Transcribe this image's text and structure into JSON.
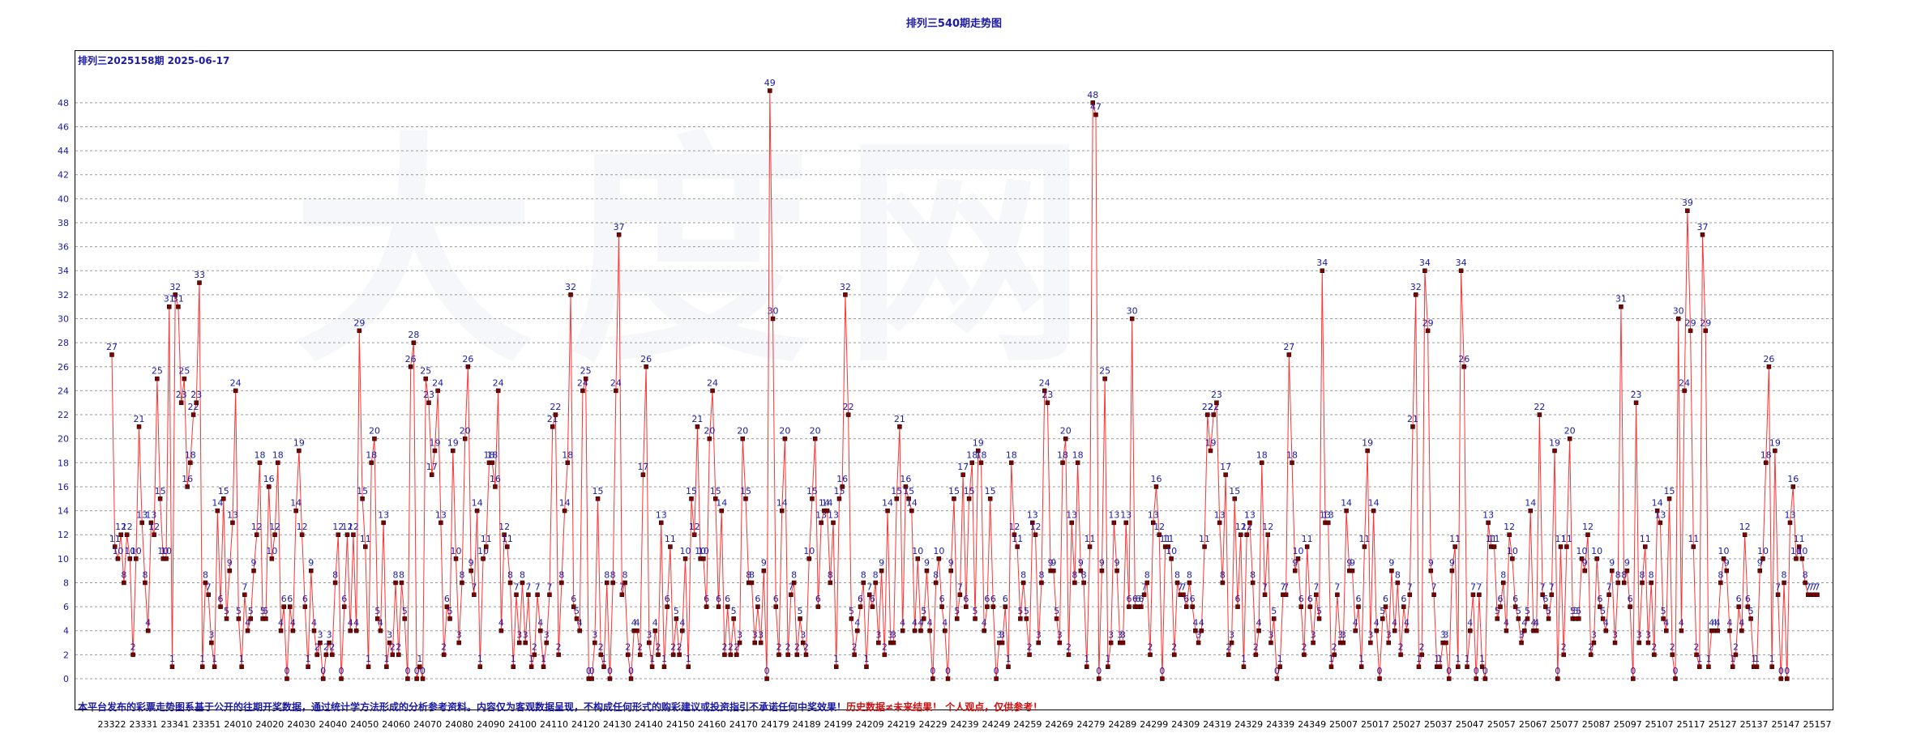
{
  "chart_data": {
    "type": "line",
    "title": "排列三540期走势图",
    "subtitle": "排列三2025158期  2025-06-17",
    "watermark": "大 度 网",
    "disclaimer_blue": "本平台发布的彩票走势图系基于公开的往期开奖数据，通过统计学方法形成的分析参考资料。内容仅为客观数据呈现，不构成任何形式的购彩建议或投资指引不承诺任何中奖效果！",
    "disclaimer_red": "历史数据≠未来结果！ 个人观点，仅供参考！",
    "ylim": [
      0,
      49
    ],
    "yticks": [
      0,
      2,
      4,
      6,
      8,
      10,
      12,
      14,
      16,
      18,
      20,
      22,
      24,
      26,
      28,
      30,
      32,
      34,
      36,
      38,
      40,
      42,
      44,
      46,
      48
    ],
    "xtick_labels": [
      "23322",
      "23331",
      "23341",
      "23351",
      "24010",
      "24020",
      "24030",
      "24040",
      "24050",
      "24060",
      "24070",
      "24080",
      "24090",
      "24100",
      "24110",
      "24120",
      "24130",
      "24140",
      "24150",
      "24160",
      "24170",
      "24179",
      "24189",
      "24199",
      "24209",
      "24219",
      "24229",
      "24239",
      "24249",
      "24259",
      "24269",
      "24279",
      "24289",
      "24299",
      "24309",
      "24319",
      "24329",
      "24339",
      "24349",
      "25007",
      "25017",
      "25027",
      "25037",
      "25047",
      "25057",
      "25067",
      "25077",
      "25087",
      "25097",
      "25107",
      "25117",
      "25127",
      "25137",
      "25147",
      "25157"
    ],
    "grid": true,
    "line_color": "#ff3333",
    "marker_color": "#800000",
    "label_color": "#1a1aa6",
    "series": [
      {
        "values": [
          27,
          11,
          10,
          12,
          8,
          12,
          10,
          2,
          10,
          21,
          13,
          8,
          4,
          13,
          12,
          25,
          15,
          10,
          10,
          31,
          1,
          32,
          31,
          23,
          25,
          16,
          18,
          22,
          23,
          33,
          1,
          8,
          7,
          3,
          1,
          14,
          6,
          15,
          5,
          9,
          13,
          24,
          5,
          1,
          7,
          4,
          5,
          9,
          12,
          18,
          5,
          5,
          16,
          10,
          12,
          18,
          4,
          6,
          0,
          6,
          4,
          14,
          19,
          12,
          6,
          1,
          9,
          4,
          2,
          3,
          0,
          2,
          3,
          2,
          8,
          12,
          0,
          6,
          12,
          4,
          12,
          4,
          29,
          15,
          11,
          1,
          18,
          20,
          5,
          4,
          13,
          1,
          3,
          2,
          8,
          2,
          8,
          5,
          0,
          26,
          28,
          0,
          1,
          0,
          25,
          23,
          17,
          19,
          24,
          13,
          2,
          6,
          5,
          19,
          10,
          3,
          8,
          20,
          26,
          9,
          7,
          14,
          1,
          10,
          11,
          18,
          18,
          16,
          24,
          4,
          12,
          11,
          8,
          1,
          7,
          3,
          8,
          3,
          7,
          1,
          2,
          7,
          4,
          1,
          3,
          7,
          21,
          22,
          2,
          8,
          14,
          18,
          32,
          6,
          5,
          4,
          24,
          25,
          0,
          0,
          3,
          15,
          2,
          1,
          8,
          0,
          8,
          24,
          37,
          7,
          8,
          2,
          0,
          4,
          4,
          2,
          17,
          26,
          3,
          1,
          4,
          2,
          13,
          1,
          6,
          11,
          2,
          5,
          2,
          4,
          10,
          1,
          15,
          12,
          21,
          10,
          10,
          6,
          20,
          24,
          15,
          6,
          14,
          2,
          6,
          2,
          5,
          2,
          3,
          20,
          15,
          8,
          8,
          3,
          6,
          3,
          9,
          0,
          49,
          30,
          6,
          2,
          14,
          20,
          2,
          7,
          8,
          2,
          5,
          3,
          2,
          10,
          15,
          20,
          6,
          13,
          14,
          14,
          8,
          13,
          1,
          15,
          16,
          32,
          22,
          5,
          2,
          4,
          6,
          8,
          1,
          7,
          6,
          8,
          3,
          9,
          2,
          14,
          3,
          3,
          15,
          21,
          4,
          16,
          15,
          14,
          4,
          10,
          4,
          5,
          9,
          4,
          0,
          8,
          10,
          6,
          4,
          0,
          9,
          15,
          5,
          7,
          17,
          6,
          15,
          18,
          5,
          19,
          18,
          4,
          6,
          15,
          6,
          0,
          3,
          3,
          6,
          1,
          18,
          12,
          11,
          5,
          8,
          5,
          2,
          13,
          12,
          3,
          8,
          24,
          23,
          9,
          9,
          5,
          3,
          18,
          20,
          2,
          13,
          8,
          18,
          9,
          8,
          1,
          11,
          48,
          47,
          0,
          9,
          25,
          1,
          3,
          13,
          9,
          3,
          3,
          13,
          6,
          30,
          6,
          6,
          6,
          7,
          8,
          2,
          13,
          16,
          12,
          0,
          11,
          11,
          10,
          2,
          8,
          7,
          7,
          6,
          8,
          6,
          4,
          3,
          4,
          11,
          22,
          19,
          22,
          23,
          13,
          8,
          17,
          2,
          3,
          15,
          6,
          12,
          1,
          12,
          13,
          8,
          2,
          4,
          18,
          7,
          12,
          3,
          5,
          0,
          1,
          7,
          7,
          27,
          18,
          9,
          10,
          6,
          2,
          11,
          6,
          3,
          7,
          5,
          34,
          13,
          13,
          1,
          2,
          7,
          3,
          3,
          14,
          9,
          9,
          4,
          6,
          1,
          11,
          19,
          3,
          14,
          4,
          0,
          5,
          6,
          3,
          9,
          4,
          8,
          2,
          6,
          4,
          7,
          21,
          32,
          1,
          2,
          34,
          29,
          9,
          7,
          1,
          1,
          3,
          3,
          0,
          9,
          11,
          1,
          34,
          26,
          1,
          4,
          7,
          0,
          7,
          1,
          0,
          13,
          11,
          11,
          5,
          6,
          8,
          4,
          12,
          10,
          6,
          5,
          3,
          4,
          5,
          14,
          4,
          4,
          22,
          7,
          6,
          5,
          7,
          19,
          0,
          11,
          2,
          11,
          20,
          5,
          5,
          5,
          10,
          9,
          12,
          2,
          3,
          10,
          6,
          5,
          4,
          7,
          9,
          3,
          8,
          31,
          8,
          9,
          6,
          0,
          23,
          3,
          8,
          11,
          3,
          8,
          2,
          14,
          13,
          5,
          4,
          15,
          2,
          0,
          30,
          4,
          24,
          39,
          29,
          11,
          2,
          1,
          37,
          29,
          1,
          4,
          4,
          4,
          8,
          10,
          9,
          4,
          1,
          2,
          6,
          4,
          12,
          6,
          5,
          1,
          1,
          9,
          10,
          18,
          26,
          1,
          19,
          7,
          0,
          8,
          0,
          13,
          16,
          10,
          11,
          10,
          8,
          7,
          7,
          7,
          7
        ]
      }
    ]
  }
}
